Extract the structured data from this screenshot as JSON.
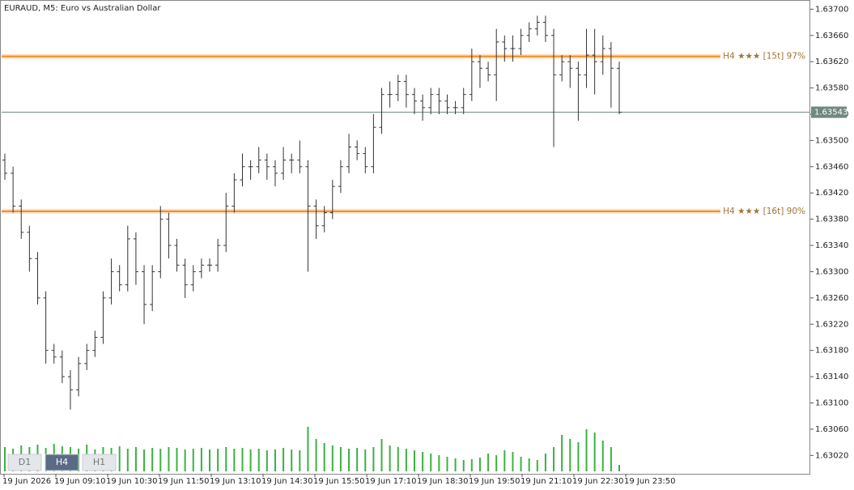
{
  "chart_data": {
    "type": "ohlc",
    "title": "EURAUD, M5:  Euro vs Australian Dollar",
    "x_labels": [
      "19 Jun 2026",
      "19 Jun 09:10",
      "19 Jun 10:30",
      "19 Jun 11:50",
      "19 Jun 13:10",
      "19 Jun 14:30",
      "19 Jun 15:50",
      "19 Jun 17:10",
      "19 Jun 18:30",
      "19 Jun 19:50",
      "19 Jun 21:10",
      "19 Jun 22:30",
      "19 Jun 23:50"
    ],
    "open": [
      1.6347,
      1.6345,
      1.634,
      1.6336,
      1.6332,
      1.6326,
      1.6318,
      1.6317,
      1.6314,
      1.6312,
      1.6316,
      1.6318,
      1.632,
      1.6326,
      1.633,
      1.6328,
      1.6335,
      1.633,
      1.6325,
      1.633,
      1.6338,
      1.6334,
      1.6331,
      1.6328,
      1.633,
      1.6331,
      1.6331,
      1.6334,
      1.634,
      1.6344,
      1.6346,
      1.6346,
      1.6347,
      1.6346,
      1.6345,
      1.6347,
      1.6347,
      1.6346,
      1.634,
      1.6337,
      1.6339,
      1.6343,
      1.6346,
      1.6349,
      1.6348,
      1.6346,
      1.6352,
      1.6357,
      1.6357,
      1.6359,
      1.6357,
      1.6356,
      1.6355,
      1.6357,
      1.6356,
      1.6355,
      1.6355,
      1.6357,
      1.6362,
      1.6361,
      1.636,
      1.6365,
      1.6364,
      1.6364,
      1.6366,
      1.6367,
      1.6368,
      1.6366,
      1.636,
      1.6362,
      1.6361,
      1.636,
      1.6363,
      1.6362,
      1.6364,
      1.6361
    ],
    "high": [
      1.6348,
      1.6346,
      1.6341,
      1.6337,
      1.6333,
      1.6327,
      1.6319,
      1.6318,
      1.6315,
      1.6317,
      1.6319,
      1.6321,
      1.6327,
      1.6332,
      1.6331,
      1.6337,
      1.6336,
      1.6331,
      1.6331,
      1.634,
      1.6339,
      1.6335,
      1.6332,
      1.6331,
      1.6332,
      1.6332,
      1.6335,
      1.6342,
      1.6345,
      1.6348,
      1.6347,
      1.6349,
      1.6348,
      1.6347,
      1.6349,
      1.6348,
      1.635,
      1.6347,
      1.6341,
      1.634,
      1.6344,
      1.6347,
      1.6351,
      1.635,
      1.6349,
      1.6354,
      1.6358,
      1.6359,
      1.636,
      1.636,
      1.6358,
      1.6357,
      1.6358,
      1.6358,
      1.6357,
      1.6356,
      1.6358,
      1.6364,
      1.6363,
      1.6362,
      1.6367,
      1.6366,
      1.6366,
      1.6367,
      1.6368,
      1.6369,
      1.6369,
      1.6367,
      1.6363,
      1.6363,
      1.6362,
      1.6367,
      1.6367,
      1.6366,
      1.6365,
      1.6362
    ],
    "low": [
      1.6344,
      1.6339,
      1.6335,
      1.633,
      1.6325,
      1.6316,
      1.6316,
      1.6313,
      1.6309,
      1.6311,
      1.6315,
      1.6317,
      1.6319,
      1.6325,
      1.6327,
      1.6327,
      1.6328,
      1.6322,
      1.6324,
      1.6329,
      1.6332,
      1.633,
      1.6326,
      1.6327,
      1.6329,
      1.633,
      1.633,
      1.6333,
      1.6339,
      1.6343,
      1.6344,
      1.6345,
      1.6344,
      1.6343,
      1.6344,
      1.6345,
      1.6345,
      1.633,
      1.6335,
      1.6336,
      1.6338,
      1.6342,
      1.6345,
      1.6347,
      1.6345,
      1.6345,
      1.6351,
      1.6355,
      1.6356,
      1.6355,
      1.6354,
      1.6353,
      1.6354,
      1.6354,
      1.6354,
      1.6354,
      1.6354,
      1.6356,
      1.6358,
      1.6359,
      1.6356,
      1.6362,
      1.6362,
      1.6363,
      1.6365,
      1.6366,
      1.6365,
      1.6349,
      1.6359,
      1.6358,
      1.6353,
      1.6358,
      1.6357,
      1.636,
      1.6355,
      1.6354
    ],
    "close": [
      1.6345,
      1.634,
      1.6336,
      1.6332,
      1.6326,
      1.6318,
      1.6317,
      1.6314,
      1.6312,
      1.6316,
      1.6318,
      1.632,
      1.6326,
      1.633,
      1.6328,
      1.6335,
      1.633,
      1.6325,
      1.633,
      1.6338,
      1.6334,
      1.6331,
      1.6328,
      1.633,
      1.6331,
      1.6331,
      1.6334,
      1.634,
      1.6344,
      1.6346,
      1.6346,
      1.6347,
      1.6346,
      1.6345,
      1.6347,
      1.6347,
      1.6346,
      1.634,
      1.6337,
      1.6339,
      1.6343,
      1.6346,
      1.6349,
      1.6348,
      1.6346,
      1.6352,
      1.6357,
      1.6357,
      1.6359,
      1.6357,
      1.6356,
      1.6355,
      1.6357,
      1.6356,
      1.6355,
      1.6355,
      1.6357,
      1.6362,
      1.6361,
      1.636,
      1.6365,
      1.6364,
      1.6364,
      1.6366,
      1.6367,
      1.6368,
      1.6366,
      1.636,
      1.6362,
      1.6361,
      1.636,
      1.6363,
      1.6362,
      1.6364,
      1.6361,
      1.63543
    ],
    "volume": [
      30,
      28,
      32,
      30,
      33,
      29,
      34,
      31,
      30,
      28,
      33,
      27,
      30,
      29,
      31,
      28,
      30,
      27,
      29,
      28,
      30,
      29,
      27,
      28,
      29,
      27,
      28,
      30,
      28,
      29,
      27,
      28,
      26,
      27,
      29,
      27,
      26,
      55,
      40,
      35,
      32,
      30,
      28,
      29,
      27,
      30,
      40,
      32,
      30,
      28,
      26,
      24,
      22,
      20,
      18,
      16,
      14,
      15,
      17,
      22,
      20,
      26,
      24,
      18,
      16,
      14,
      22,
      30,
      45,
      40,
      36,
      52,
      48,
      38,
      30,
      8
    ],
    "volume_color": "#3cb043",
    "bar_color": "#333333",
    "price": 1.63543,
    "levels": [
      {
        "value": 1.63628,
        "label": "H4 ★★★ [15t] 97%"
      },
      {
        "value": 1.63392,
        "label": "H4 ★★★ [16t] 90%"
      }
    ],
    "level_color": "#f28a1e",
    "ylim": [
      1.62992,
      1.63714
    ],
    "yticks": [
      {
        "value": 1.6302,
        "label": "1.63020"
      },
      {
        "value": 1.6306,
        "label": "1.63060"
      },
      {
        "value": 1.631,
        "label": "1.63100"
      },
      {
        "value": 1.6314,
        "label": "1.63140"
      },
      {
        "value": 1.6318,
        "label": "1.63180"
      },
      {
        "value": 1.6322,
        "label": "1.63220"
      },
      {
        "value": 1.6326,
        "label": "1.63260"
      },
      {
        "value": 1.633,
        "label": "1.63300"
      },
      {
        "value": 1.6334,
        "label": "1.63340"
      },
      {
        "value": 1.6338,
        "label": "1.63380"
      },
      {
        "value": 1.6342,
        "label": "1.63420"
      },
      {
        "value": 1.6346,
        "label": "1.63460"
      },
      {
        "value": 1.635,
        "label": "1.63500"
      },
      {
        "value": 1.6354,
        "label": "1.63540"
      },
      {
        "value": 1.6358,
        "label": "1.63580"
      },
      {
        "value": 1.6362,
        "label": "1.63620"
      },
      {
        "value": 1.6366,
        "label": "1.63660"
      },
      {
        "value": 1.637,
        "label": "1.63700"
      }
    ]
  },
  "timeframes": [
    {
      "label": "D1",
      "active": false
    },
    {
      "label": "H4",
      "active": true
    },
    {
      "label": "H1",
      "active": false
    }
  ]
}
